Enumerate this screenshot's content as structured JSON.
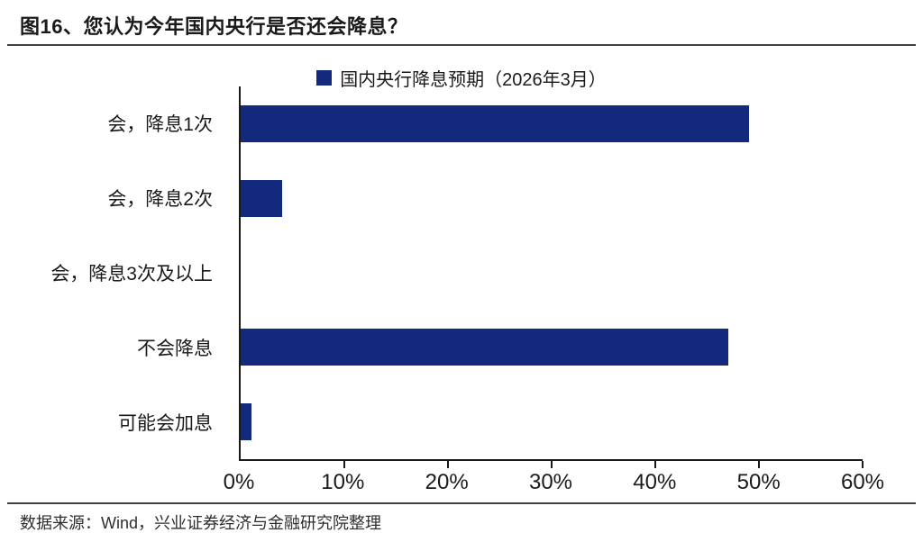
{
  "title": "图16、您认为今年国内央行是否还会降息？",
  "legend": {
    "label": "国内央行降息预期（2026年3月）"
  },
  "footer": {
    "source": "数据来源：Wind，兴业证券经济与金融研究院整理"
  },
  "colors": {
    "bar": "#12297E",
    "axis": "#1a1a1a",
    "rule": "#3f3f3f"
  },
  "chart_data": {
    "type": "bar",
    "orientation": "horizontal",
    "title": "图16、您认为今年国内央行是否还会降息？",
    "legend": "国内央行降息预期（2026年3月）",
    "legend_position": "top-center",
    "categories": [
      "会，降息1次",
      "会，降息2次",
      "会，降息3次及以上",
      "不会降息",
      "可能会加息"
    ],
    "values": [
      49,
      4,
      0,
      47,
      1
    ],
    "unit": "%",
    "xlim": [
      0,
      60
    ],
    "xtick_values": [
      0,
      10,
      20,
      30,
      40,
      50,
      60
    ],
    "xtick_labels": [
      "0%",
      "10%",
      "20%",
      "30%",
      "40%",
      "50%",
      "60%"
    ],
    "grid": false
  }
}
